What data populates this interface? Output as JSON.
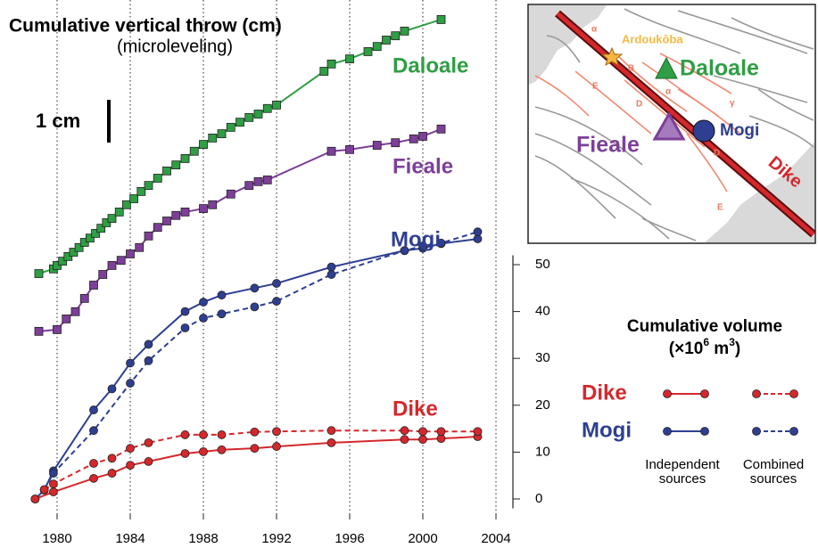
{
  "chart_data": {
    "type": "line",
    "title": "Cumulative vertical throw (cm)",
    "subtitle": "(microleveling)",
    "xlim": [
      1978,
      2005
    ],
    "xticks": [
      1980,
      1984,
      1988,
      1992,
      1996,
      2000,
      2004
    ],
    "ylim": [
      -2,
      52
    ],
    "yticks": [
      0,
      10,
      20,
      30,
      40,
      50
    ],
    "y2lim": [
      0,
      12
    ],
    "grid": true,
    "scale_bar": {
      "label": "1 cm",
      "value": 1
    },
    "series": [
      {
        "name": "Daloale",
        "color": "#2f9e44",
        "axis": "y2",
        "marker": "square",
        "style": "solid",
        "x": [
          1979.0,
          1979.8,
          1980.0,
          1980.3,
          1980.6,
          1980.9,
          1981.2,
          1981.5,
          1981.8,
          1982.1,
          1982.4,
          1982.7,
          1983.0,
          1983.4,
          1983.8,
          1984.2,
          1984.6,
          1985.0,
          1985.5,
          1986.0,
          1986.5,
          1987.0,
          1987.5,
          1988.0,
          1988.5,
          1989.0,
          1989.5,
          1990.0,
          1990.5,
          1991.0,
          1991.5,
          1992.0,
          1994.6,
          1995.0,
          1996.0,
          1997.0,
          1997.5,
          1998.0,
          1998.5,
          1999.0,
          2001.0
        ],
        "values": [
          5.27,
          5.38,
          5.46,
          5.56,
          5.67,
          5.77,
          5.88,
          6.0,
          6.1,
          6.21,
          6.33,
          6.46,
          6.56,
          6.71,
          6.88,
          7.02,
          7.19,
          7.33,
          7.5,
          7.67,
          7.81,
          7.96,
          8.13,
          8.29,
          8.44,
          8.54,
          8.69,
          8.81,
          8.92,
          9.0,
          9.13,
          9.21,
          10.0,
          10.17,
          10.29,
          10.46,
          10.58,
          10.73,
          10.83,
          10.94,
          11.21
        ]
      },
      {
        "name": "Fieale",
        "color": "#7d3f98",
        "axis": "y2",
        "marker": "square",
        "style": "solid",
        "x": [
          1979.0,
          1980.0,
          1980.5,
          1981.0,
          1981.5,
          1982.0,
          1982.5,
          1983.0,
          1983.5,
          1984.0,
          1984.5,
          1985.0,
          1985.5,
          1986.0,
          1986.5,
          1987.0,
          1988.0,
          1988.5,
          1989.5,
          1990.5,
          1991.0,
          1991.5,
          1995.0,
          1996.0,
          1997.5,
          1998.5,
          1999.5,
          2000.0,
          2001.0
        ],
        "values": [
          3.92,
          3.96,
          4.21,
          4.38,
          4.69,
          5.0,
          5.25,
          5.46,
          5.58,
          5.73,
          5.88,
          6.15,
          6.35,
          6.5,
          6.63,
          6.71,
          6.79,
          6.88,
          7.13,
          7.33,
          7.42,
          7.46,
          8.13,
          8.17,
          8.27,
          8.33,
          8.42,
          8.48,
          8.65
        ]
      },
      {
        "name": "Mogi",
        "color": "#2e3f92",
        "marker": "circle",
        "style": "solid",
        "x": [
          1978.8,
          1979.3,
          1979.8,
          1982.0,
          1983.0,
          1984.0,
          1985.0,
          1987.0,
          1988.0,
          1989.0,
          1990.8,
          1992.0,
          1995.0,
          1999.0,
          2000.0,
          2001.0,
          2003.0
        ],
        "values": [
          0,
          1.9,
          6,
          19,
          23.5,
          29,
          33,
          40,
          42,
          43.5,
          45,
          46,
          49.5,
          53,
          53.5,
          54.5,
          55.5
        ]
      },
      {
        "name": "Mogi",
        "color": "#2e3f92",
        "marker": "circle",
        "style": "dashed",
        "x": [
          1979.3,
          1979.8,
          1982.0,
          1984.0,
          1985.0,
          1987.0,
          1988.0,
          1989.0,
          1990.8,
          1992.0,
          1995.0,
          1999.0,
          2000.0,
          2001.0,
          2003.0
        ],
        "values": [
          2,
          5.5,
          14.6,
          24.7,
          29.5,
          36.5,
          38.6,
          39.5,
          41,
          42.2,
          47.9,
          53,
          54,
          54.6,
          57
        ]
      },
      {
        "name": "Dike",
        "color": "#d4282c",
        "marker": "circle",
        "style": "solid",
        "x": [
          1978.8,
          1979.8,
          1982.0,
          1983.0,
          1984.0,
          1985.0,
          1987.0,
          1988.0,
          1989.0,
          1990.8,
          1992.0,
          1995.0,
          1999.0,
          2000.0,
          2001.0,
          2003.0
        ],
        "values": [
          0,
          1.5,
          4.4,
          5.5,
          7.2,
          8,
          9.7,
          10.1,
          10.5,
          10.8,
          11.2,
          12,
          12.7,
          12.7,
          12.9,
          13.3
        ]
      },
      {
        "name": "Dike",
        "color": "#d4282c",
        "marker": "circle",
        "style": "dashed",
        "x": [
          1979.3,
          1979.8,
          1982.0,
          1983.0,
          1984.0,
          1985.0,
          1987.0,
          1988.0,
          1989.0,
          1990.8,
          1992.0,
          1995.0,
          1999.0,
          2000.0,
          2001.0,
          2003.0
        ],
        "values": [
          2,
          3.2,
          7.6,
          8.7,
          10.8,
          12,
          13.7,
          13.7,
          13.7,
          14.3,
          14.4,
          14.6,
          14.6,
          14.4,
          14.4,
          14.4
        ]
      }
    ],
    "legend": {
      "title": "Cumulative volume",
      "units": [
        "(×10",
        "6",
        " m",
        "3",
        ")"
      ],
      "columns": [
        [
          "Independent",
          "sources"
        ],
        [
          "Combined",
          "sources"
        ]
      ]
    }
  },
  "map": {
    "labels": {
      "village": "Ardoukôba",
      "daloale": "Daloale",
      "fieale": "Fieale",
      "mogi": "Mogi",
      "dike": "Dike"
    },
    "fault_letters": [
      "α",
      "B",
      "E",
      "D",
      "α",
      "γ",
      "D",
      "E"
    ]
  }
}
